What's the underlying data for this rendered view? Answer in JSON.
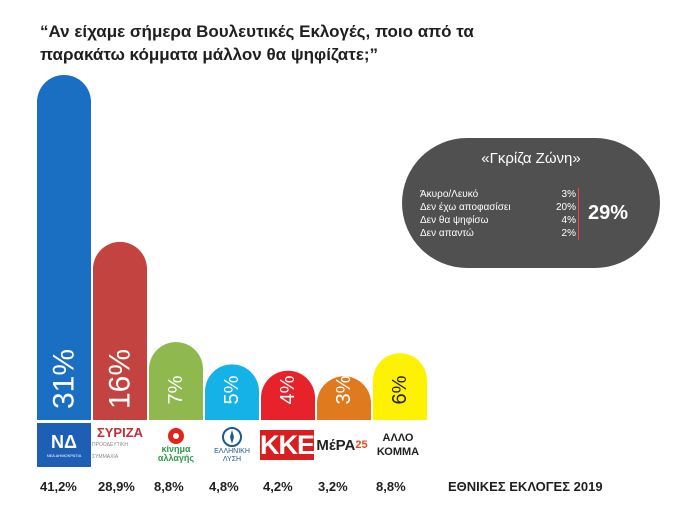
{
  "title": "“Αν είχαμε σήμερα Βουλευτικές Εκλογές, ποιο από τα παρακάτω κόμματα μάλλον θα ψηφίζατε;”",
  "chart_data": {
    "type": "bar",
    "categories": [
      "ΝΔ",
      "ΣΥΡΙΖΑ",
      "ΚΙΝΑΛ",
      "Ελληνική Λύση",
      "ΚΚΕ",
      "ΜέΡΑ25",
      "ΑΛΛΟ ΚΟΜΜΑ"
    ],
    "values": [
      31,
      16,
      7,
      5,
      4,
      3,
      6
    ],
    "value_labels": [
      "31%",
      "16%",
      "7%",
      "5%",
      "4%",
      "3%",
      "6%"
    ],
    "colors": [
      "#1a6fc2",
      "#c24340",
      "#8fb84e",
      "#14b2e6",
      "#e8222b",
      "#e07a1e",
      "#fff200"
    ],
    "label_colors": [
      "#ffffff",
      "#ffffff",
      "#ffffff",
      "#ffffff",
      "#ffffff",
      "#ffffff",
      "#222222"
    ],
    "ylim": [
      0,
      31
    ],
    "election_2019": [
      "41,2%",
      "28,9%",
      "8,8%",
      "4,8%",
      "4,2%",
      "3,2%",
      "8,8%"
    ],
    "election_label": "ΕΘΝΙΚΕΣ ΕΚΛΟΓΕΣ 2019"
  },
  "logos": {
    "nd": "ΝΔ",
    "nd_sub": "ΝΕΑ ΔΗΜΟΚΡΑΤΙΑ",
    "syriza": "ΣΥΡΙΖΑ",
    "syriza_sub": "ΠΡΟΟΔΕΥΤΙΚΗ ΣΥΜΜΑΧΙΑ",
    "kinal_l1": "κίνημα",
    "kinal_l2": "αλλαγής",
    "el_l1": "ΕΛΛΗΝΙΚΗ",
    "el_l2": "ΛΥΣΗ",
    "kke": "ΚΚΕ",
    "mera": "ΜέΡΑ",
    "mera_n": "25",
    "other_l1": "ΑΛΛΟ",
    "other_l2": "ΚΟΜΜΑ"
  },
  "gray_zone": {
    "title": "«Γκρίζα Ζώνη»",
    "rows": [
      {
        "label": "Άκυρο/Λευκό",
        "value": "3%"
      },
      {
        "label": "Δεν έχω αποφασίσει",
        "value": "20%"
      },
      {
        "label": "Δεν θα ψηφίσω",
        "value": "4%"
      },
      {
        "label": "Δεν απαντώ",
        "value": "2%"
      }
    ],
    "total": "29%"
  },
  "colors": {
    "background": "#ffffff",
    "panel": "#505050",
    "accent": "#ff3b3b"
  }
}
